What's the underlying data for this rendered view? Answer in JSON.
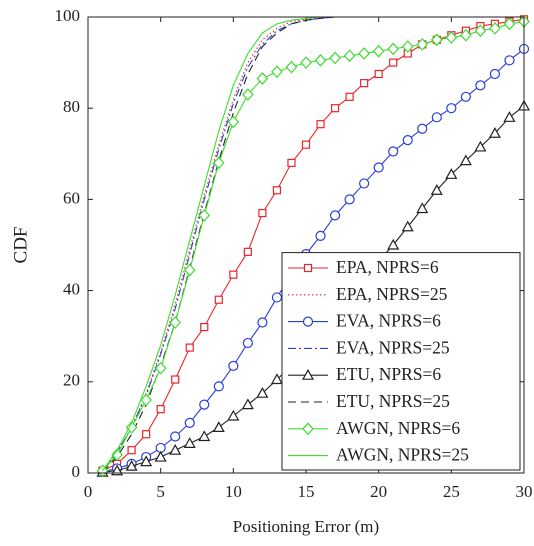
{
  "chart_data": {
    "type": "line",
    "xlabel": "Positioning Error (m)",
    "ylabel": "CDF",
    "xlim": [
      0,
      30
    ],
    "ylim": [
      0,
      100
    ],
    "xticks": [
      0,
      5,
      10,
      15,
      20,
      25,
      30
    ],
    "yticks": [
      0,
      20,
      40,
      60,
      80,
      100
    ],
    "legend": "lower right",
    "x": [
      1,
      2,
      3,
      4,
      5,
      6,
      7,
      8,
      9,
      10,
      11,
      12,
      13,
      14,
      15,
      16,
      17,
      18,
      19,
      20,
      21,
      22,
      23,
      24,
      25,
      26,
      27,
      28,
      29,
      30
    ],
    "series": [
      {
        "name": "EPA, NPRS=6",
        "color": "#e8262b",
        "marker": "square",
        "dash": "solid",
        "values": [
          0.5,
          2,
          5,
          8.5,
          14,
          20.5,
          27.5,
          32,
          38,
          43.5,
          48.5,
          57,
          62,
          68,
          72,
          76.5,
          80,
          82.5,
          85.5,
          87.5,
          90,
          92,
          94,
          95,
          96,
          97,
          98,
          98.5,
          99,
          99.5
        ]
      },
      {
        "name": "EPA, NPRS=25",
        "color": "#e8262b",
        "marker": "none",
        "dash": "dotted",
        "values": [
          0.5,
          4.5,
          10,
          17.5,
          26.5,
          37,
          49,
          61,
          72,
          82,
          90,
          95,
          97.5,
          99,
          99.5,
          99.8,
          100,
          100,
          100,
          100,
          100,
          100,
          100,
          100,
          100,
          100,
          100,
          100,
          100,
          100
        ]
      },
      {
        "name": "EVA, NPRS=6",
        "color": "#2a3fd6",
        "marker": "circle",
        "dash": "solid",
        "values": [
          0.3,
          1,
          2,
          3.5,
          5.5,
          8,
          11,
          15,
          19,
          23.5,
          28.5,
          33,
          38.5,
          43.5,
          48,
          52,
          56.5,
          60,
          63.5,
          67,
          70.5,
          73,
          75.5,
          78,
          80,
          82.5,
          85,
          87.5,
          90.5,
          93
        ]
      },
      {
        "name": "EVA, NPRS=25",
        "color": "#2a3fd6",
        "marker": "none",
        "dash": "dashdot",
        "values": [
          0.5,
          4.5,
          10,
          17,
          26,
          36,
          48,
          60,
          71,
          81,
          89,
          94,
          97,
          98.5,
          99.3,
          99.7,
          100,
          100,
          100,
          100,
          100,
          100,
          100,
          100,
          100,
          100,
          100,
          100,
          100,
          100
        ]
      },
      {
        "name": "ETU, NPRS=6",
        "color": "#222222",
        "marker": "triangle",
        "dash": "solid",
        "values": [
          0.2,
          0.5,
          1.5,
          2.5,
          3.5,
          5,
          6.5,
          8,
          10,
          12.5,
          15,
          17.5,
          20.5,
          23.5,
          27,
          30.5,
          34.5,
          38,
          42,
          46.5,
          50,
          54,
          58,
          62,
          65.5,
          68.5,
          71.5,
          74.5,
          78,
          80.5
        ]
      },
      {
        "name": "ETU, NPRS=25",
        "color": "#222222",
        "marker": "none",
        "dash": "dashed",
        "values": [
          0.3,
          3.5,
          8.5,
          15,
          23.5,
          33,
          45,
          57,
          68.5,
          79,
          87.5,
          93.5,
          96.5,
          98.5,
          99.3,
          99.7,
          100,
          100,
          100,
          100,
          100,
          100,
          100,
          100,
          100,
          100,
          100,
          100,
          100,
          100
        ]
      },
      {
        "name": "AWGN, NPRS=6",
        "color": "#3ddc2e",
        "marker": "diamond",
        "dash": "solid",
        "values": [
          0.5,
          4,
          10,
          16,
          23,
          33,
          44.5,
          56.5,
          68,
          77,
          83,
          86.5,
          88,
          89,
          90,
          90.5,
          91,
          91.5,
          92,
          92.5,
          93,
          93.5,
          94,
          95,
          95.5,
          96,
          97,
          97.5,
          98.5,
          99
        ]
      },
      {
        "name": "AWGN, NPRS=25",
        "color": "#3ddc2e",
        "marker": "none",
        "dash": "solid",
        "values": [
          0.5,
          5,
          11,
          19,
          28,
          39,
          51,
          63,
          75,
          85,
          92,
          96.5,
          98.5,
          99.3,
          99.7,
          100,
          100,
          100,
          100,
          100,
          100,
          100,
          100,
          100,
          100,
          100,
          100,
          100,
          100,
          100
        ]
      }
    ]
  }
}
